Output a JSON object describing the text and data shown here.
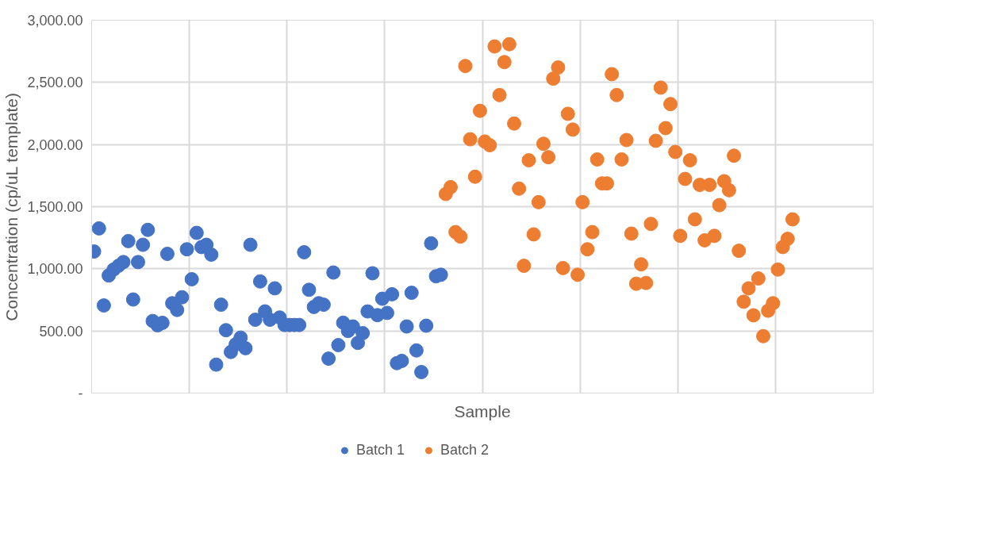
{
  "chart_data": {
    "type": "scatter",
    "xlabel": "Sample",
    "ylabel": "Concentration (cp/uL template)",
    "categories": [
      null,
      null,
      null,
      null,
      null,
      null,
      null,
      null,
      null,
      null,
      null,
      null,
      null,
      null,
      null,
      null,
      null,
      null,
      null,
      null,
      null,
      null,
      null,
      null,
      null,
      null,
      null,
      null,
      null,
      null,
      null,
      null,
      null,
      null,
      null,
      null,
      null,
      null,
      null,
      null,
      null,
      null,
      null,
      null,
      null,
      null,
      null,
      null,
      null,
      null,
      null,
      null,
      null,
      null,
      null,
      null,
      null,
      null,
      null,
      null,
      null,
      null,
      null,
      null,
      null,
      null,
      null,
      null,
      null,
      null,
      null,
      null,
      null,
      null,
      null,
      null,
      null,
      null,
      null,
      null,
      null,
      null,
      null,
      null,
      null,
      null,
      null,
      null,
      null,
      null,
      null,
      null,
      null,
      null,
      null,
      null,
      null,
      null,
      null,
      null,
      null,
      null,
      null,
      null,
      null,
      null,
      null,
      null,
      null,
      null,
      null,
      null,
      null,
      null,
      null,
      null,
      null,
      null,
      null,
      null,
      null,
      null,
      null,
      null,
      null,
      null,
      null,
      null,
      null,
      null,
      null,
      null,
      null,
      null,
      null,
      null,
      null,
      null,
      null,
      null,
      null,
      null,
      null,
      null,
      null,
      null,
      null,
      null,
      null,
      null,
      null,
      null,
      null,
      null,
      null,
      null,
      null,
      null,
      null,
      null
    ],
    "ylim": [
      0,
      3000
    ],
    "yticks": [
      {
        "value": 0,
        "label": "-"
      },
      {
        "value": 500,
        "label": "500.00"
      },
      {
        "value": 1000,
        "label": "1,000.00"
      },
      {
        "value": 1500,
        "label": "1,500.00"
      },
      {
        "value": 2000,
        "label": "2,000.00"
      },
      {
        "value": 2500,
        "label": "2,500.00"
      },
      {
        "value": 3000,
        "label": "3,000.00"
      }
    ],
    "tick_labels": "y",
    "grid": true,
    "legend": "bottom",
    "marker": "circle",
    "series": [
      {
        "name": "Batch 1",
        "color": "#4472c4",
        "values": [
          1139,
          1325,
          705,
          946,
          994,
          1024,
          1054,
          1223,
          753,
          1054,
          1193,
          1313,
          580,
          545,
          565,
          1120,
          723,
          669,
          771,
          1157,
          916,
          1289,
          1175,
          1193,
          1114,
          229,
          711,
          506,
          331,
          392,
          446,
          361,
          1193,
          590,
          898,
          657,
          590,
          843,
          608,
          548,
          548,
          548,
          548,
          1133,
          831,
          693,
          723,
          711,
          277,
          970,
          386,
          566,
          500,
          536,
          404,
          482,
          657,
          964,
          627,
          759,
          645,
          795,
          241,
          259,
          536,
          807,
          343,
          169,
          542,
          1205,
          940,
          952,
          null,
          null,
          null,
          null,
          null,
          null,
          null,
          null,
          null,
          null,
          null,
          null,
          null,
          null,
          null,
          null,
          null,
          null,
          null,
          null,
          null,
          null,
          null,
          null,
          null,
          null,
          null,
          null,
          null,
          null,
          null,
          null,
          null,
          null,
          null,
          null,
          null,
          null,
          null,
          null,
          null,
          null,
          null,
          null,
          null,
          null,
          null,
          null,
          null,
          null,
          null,
          null,
          null,
          null,
          null,
          null,
          null,
          null,
          null,
          null,
          null,
          null,
          null,
          null,
          null,
          null,
          null,
          null,
          null,
          null,
          null,
          null,
          null,
          null,
          null,
          null,
          null,
          null,
          null,
          null,
          null,
          null,
          null,
          null,
          null,
          null,
          null,
          null
        ]
      },
      {
        "name": "Batch 2",
        "color": "#ed7d31",
        "values": [
          null,
          null,
          null,
          null,
          null,
          null,
          null,
          null,
          null,
          null,
          null,
          null,
          null,
          null,
          null,
          null,
          null,
          null,
          null,
          null,
          null,
          null,
          null,
          null,
          null,
          null,
          null,
          null,
          null,
          null,
          null,
          null,
          null,
          null,
          null,
          null,
          null,
          null,
          null,
          null,
          null,
          null,
          null,
          null,
          null,
          null,
          null,
          null,
          null,
          null,
          null,
          null,
          null,
          null,
          null,
          null,
          null,
          null,
          null,
          null,
          null,
          null,
          null,
          null,
          null,
          null,
          null,
          null,
          null,
          null,
          null,
          null,
          1602,
          1657,
          1295,
          1259,
          2632,
          2042,
          1741,
          2271,
          2024,
          1994,
          2789,
          2398,
          2663,
          2807,
          2169,
          1645,
          1024,
          1873,
          1277,
          1536,
          2006,
          1898,
          2530,
          2620,
          1006,
          2247,
          2120,
          952,
          1536,
          1157,
          1295,
          1880,
          1687,
          1687,
          2566,
          2398,
          1880,
          2036,
          1283,
          880,
          1036,
          886,
          1361,
          2030,
          2458,
          2132,
          2325,
          1940,
          1265,
          1723,
          1873,
          1398,
          1675,
          1229,
          1675,
          1265,
          1512,
          1705,
          1632,
          1910,
          1145,
          735,
          843,
          626,
          922,
          458,
          663,
          723,
          994,
          1175,
          1241,
          1398,
          null,
          null,
          null,
          null,
          null,
          null,
          null,
          null,
          null,
          null,
          null,
          null,
          null,
          null,
          null,
          null
        ]
      }
    ]
  }
}
